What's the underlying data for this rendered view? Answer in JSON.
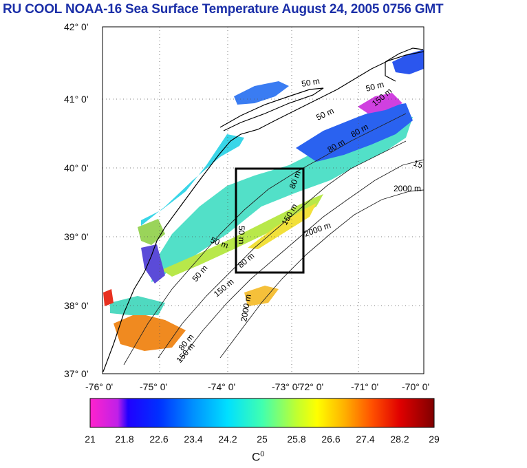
{
  "title": "RU COOL  NOAA-16 Sea Surface Temperature August 24, 2005 0756 GMT",
  "lat_labels": [
    "42° 0'",
    "41° 0'",
    "40° 0'",
    "39° 0'",
    "38° 0'",
    "37° 0'"
  ],
  "lon_labels": [
    "-76° 0'",
    "-75° 0'",
    "-74° 0'",
    "-73° 0'",
    "-72° 0'",
    "-71° 0'",
    "-70° 0'"
  ],
  "contour_labels": [
    {
      "text": "50 m"
    },
    {
      "text": "50 m"
    },
    {
      "text": "50 m"
    },
    {
      "text": "80 m"
    },
    {
      "text": "80 m"
    },
    {
      "text": "150 m"
    },
    {
      "text": "2000 m"
    },
    {
      "text": "2000 m"
    },
    {
      "text": "50 m"
    },
    {
      "text": "50 m"
    },
    {
      "text": "80 m"
    },
    {
      "text": "150 m"
    },
    {
      "text": "2000 m"
    },
    {
      "text": "80 m"
    },
    {
      "text": "150 m"
    },
    {
      "text": "150 m"
    },
    {
      "text": "50 m"
    },
    {
      "text": "15"
    },
    {
      "text": "80 m"
    }
  ],
  "colorbar": {
    "ticks": [
      "21",
      "21.8",
      "22.6",
      "23.4",
      "24.2",
      "25",
      "25.8",
      "26.6",
      "27.4",
      "28.2",
      "29"
    ],
    "unit": "C",
    "unit_sup": "0",
    "min": 21,
    "max": 29
  },
  "colors": {
    "title": "#1b2fa8",
    "land": "#ffffff",
    "frame": "#000000"
  }
}
